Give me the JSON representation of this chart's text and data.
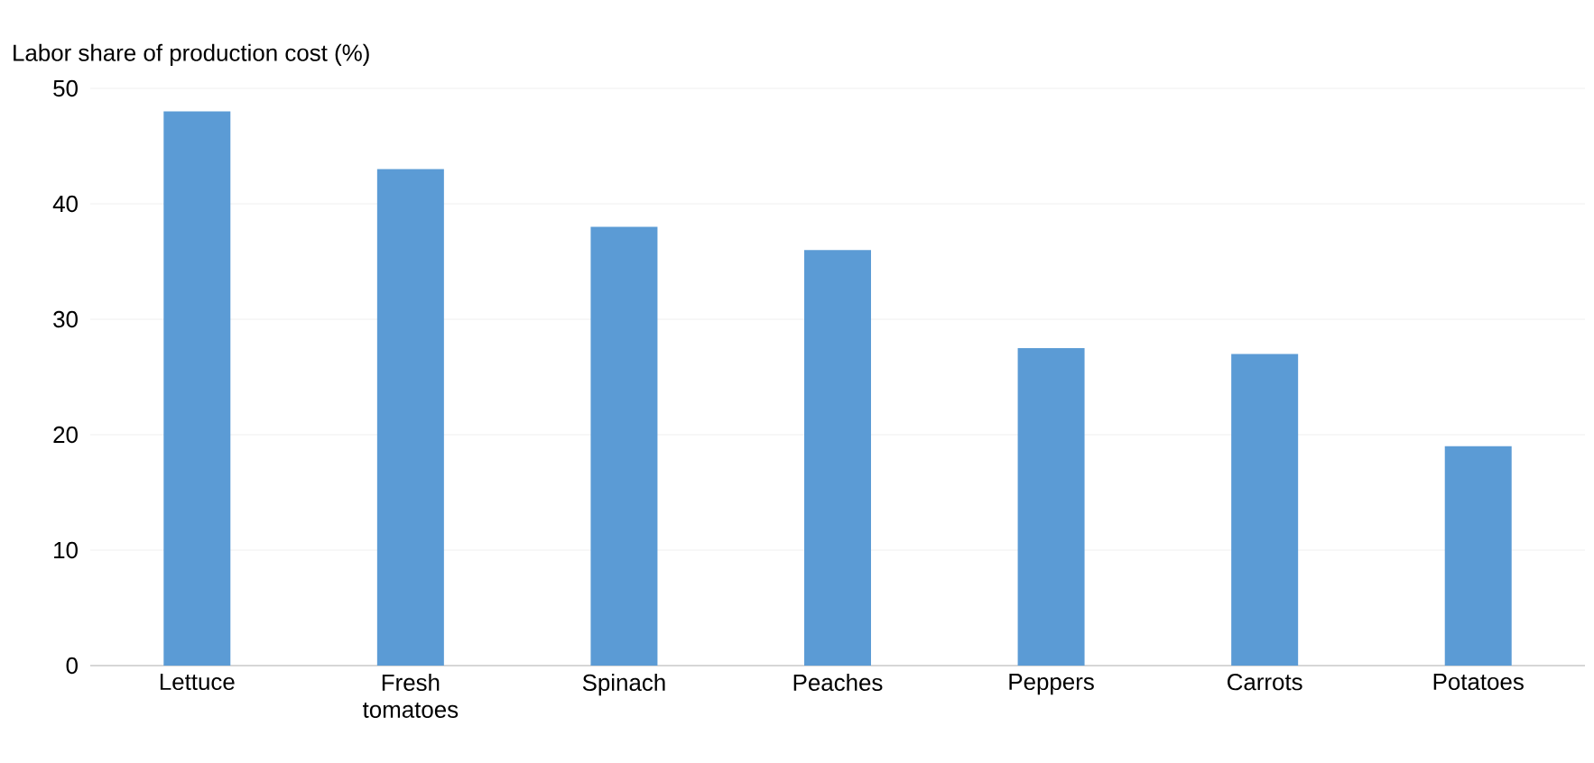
{
  "chart_data": {
    "type": "bar",
    "ylabel": "Labor share of production cost (%)",
    "categories": [
      "Lettuce",
      "Fresh tomatoes",
      "Spinach",
      "Peaches",
      "Peppers",
      "Carrots",
      "Potatoes"
    ],
    "values": [
      48,
      43,
      38,
      36,
      27.5,
      27,
      19
    ],
    "color": "#5b9bd5",
    "ylim": [
      0,
      50
    ],
    "yticks": [
      0,
      10,
      20,
      30,
      40,
      50
    ],
    "grid": "y"
  }
}
